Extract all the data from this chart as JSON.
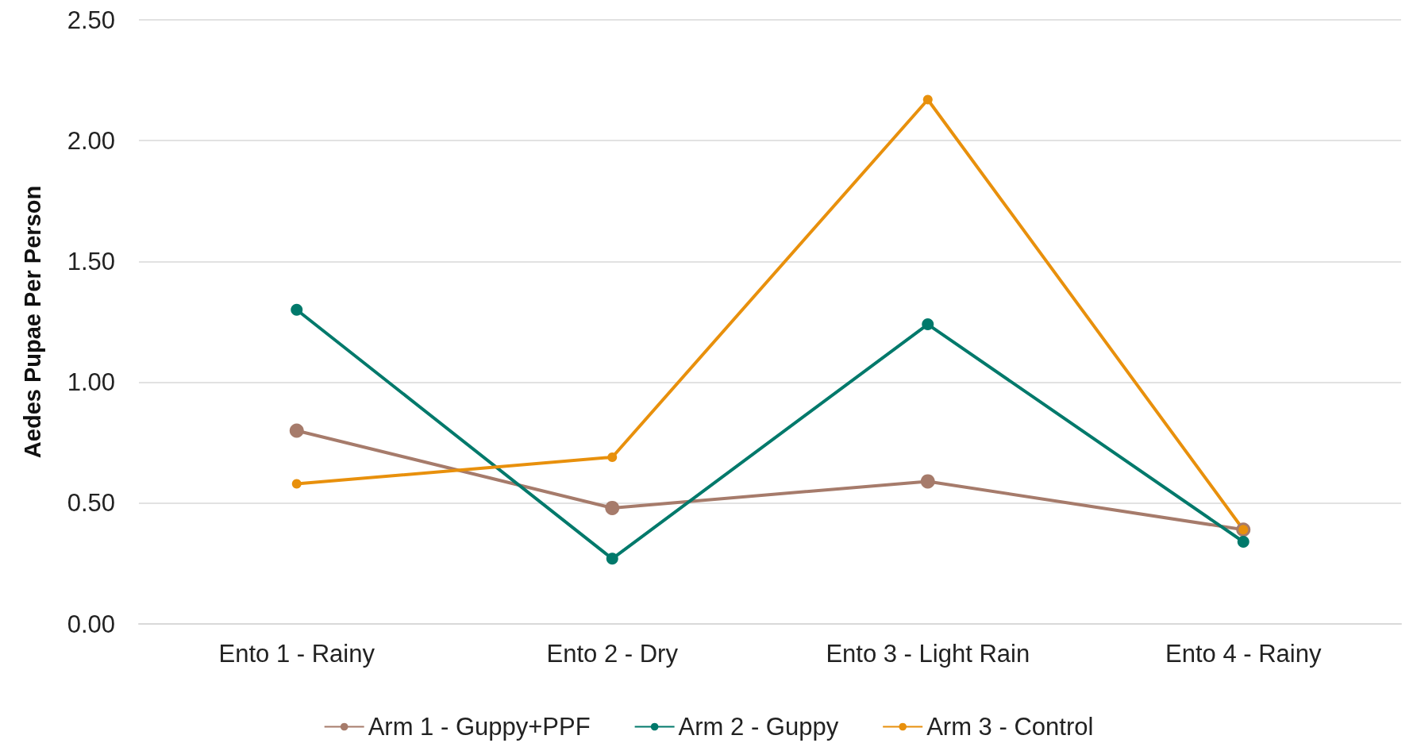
{
  "chart_data": {
    "type": "line",
    "ylabel": "Aedes Pupae Per Person",
    "categories": [
      "Ento 1 - Rainy",
      "Ento 2 - Dry",
      "Ento 3 - Light Rain",
      "Ento 4 - Rainy"
    ],
    "series": [
      {
        "name": "Arm 1 - Guppy+PPF",
        "color": "#a67b6b",
        "values": [
          0.8,
          0.48,
          0.59,
          0.39
        ]
      },
      {
        "name": "Arm 2 - Guppy",
        "color": "#00796b",
        "values": [
          1.3,
          0.27,
          1.24,
          0.34
        ]
      },
      {
        "name": "Arm 3 - Control",
        "color": "#e8900c",
        "values": [
          0.58,
          0.69,
          2.17,
          0.39
        ]
      }
    ],
    "ylim": [
      0,
      2.5
    ],
    "yticks": [
      {
        "value": 0,
        "label": "0.00"
      },
      {
        "value": 0.5,
        "label": "0.50"
      },
      {
        "value": 1,
        "label": "1.00"
      },
      {
        "value": 1.5,
        "label": "1.50"
      },
      {
        "value": 2,
        "label": "2.00"
      },
      {
        "value": 2.5,
        "label": "2.50"
      }
    ],
    "grid": "y",
    "legend": "bottom",
    "marker": "circle",
    "line_style": "solid"
  }
}
